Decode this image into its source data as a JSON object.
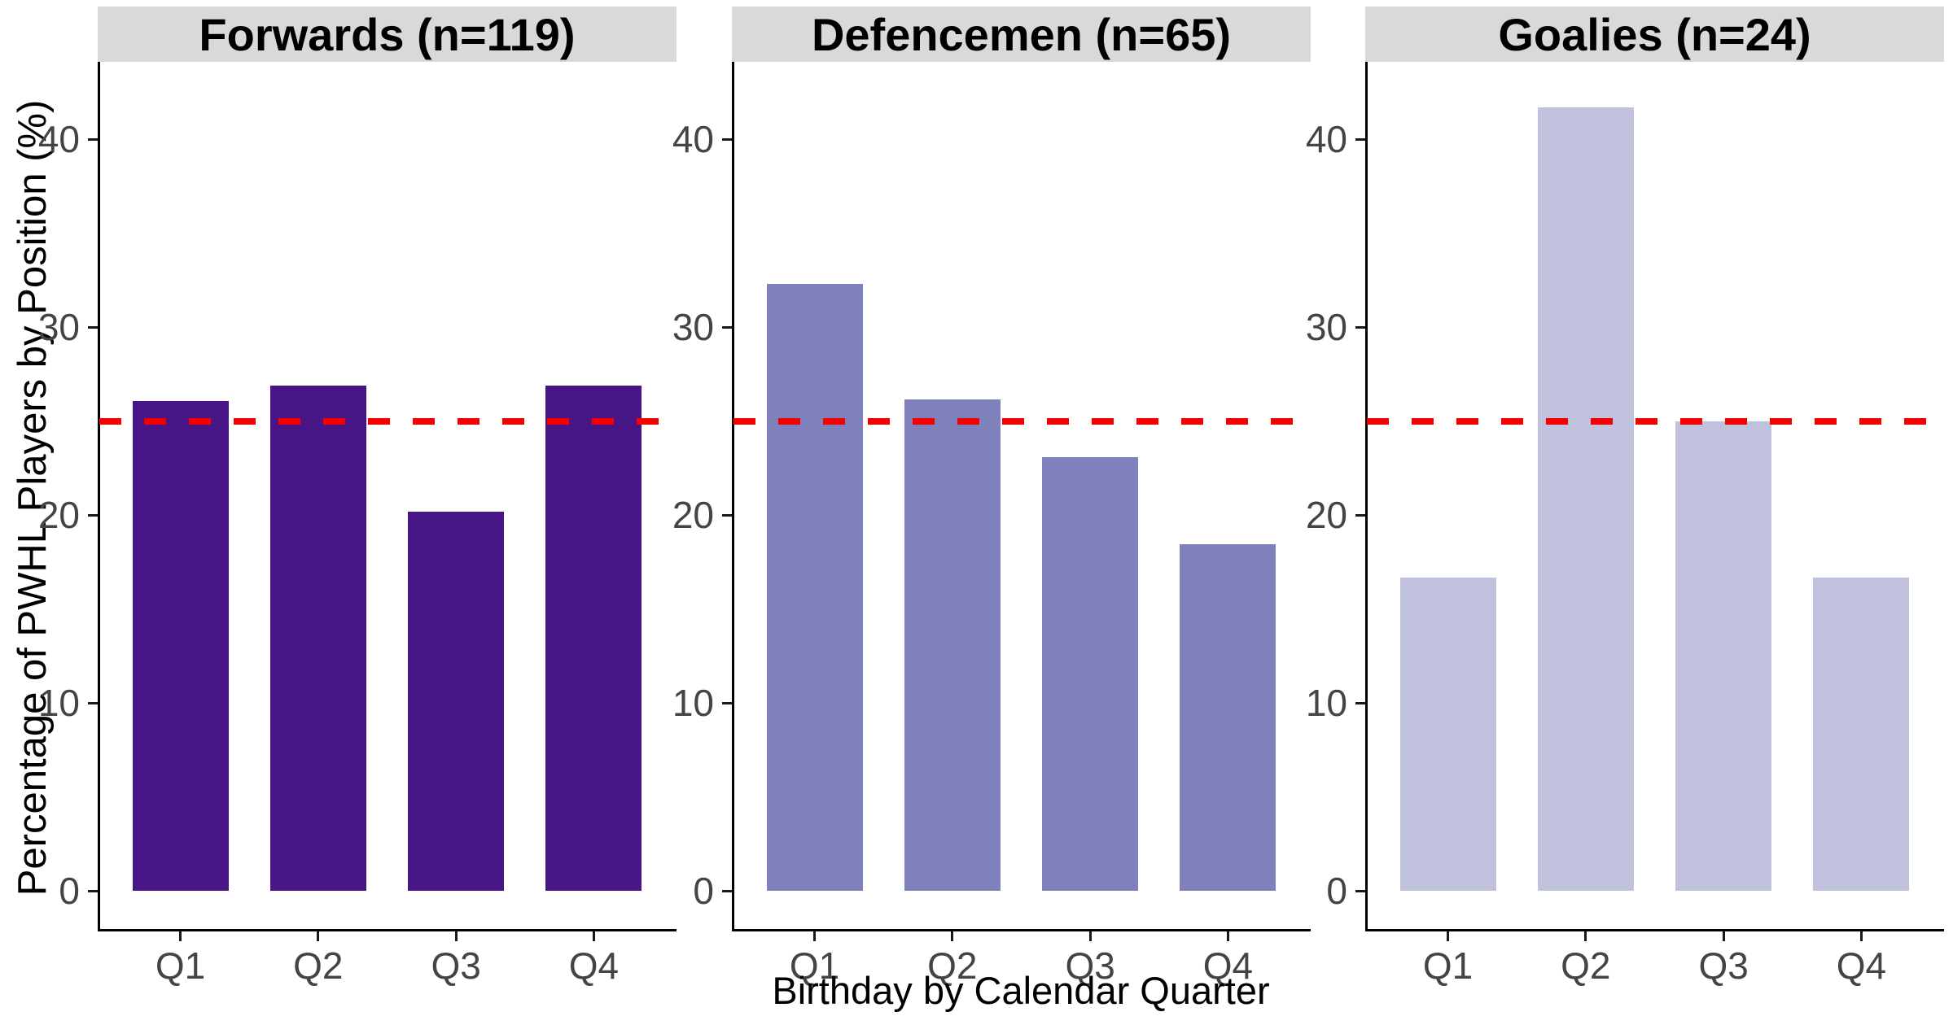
{
  "chart_data": {
    "type": "bar",
    "faceted": true,
    "x_title": "Birthday by Calendar Quarter",
    "y_title": "Percentage of PWHL Players by Position (%)",
    "categories": [
      "Q1",
      "Q2",
      "Q3",
      "Q4"
    ],
    "y_ticks": [
      0,
      10,
      20,
      30,
      40
    ],
    "ylim": [
      0,
      44.3
    ],
    "grid": false,
    "legend": "none",
    "reference_line": {
      "value": 25,
      "style": "dashed",
      "color": "#F40000"
    },
    "panels": [
      {
        "label": "Forwards (n=119)",
        "n": 119,
        "bar_color": "#481586",
        "values": [
          26.05,
          26.89,
          20.17,
          26.89
        ]
      },
      {
        "label": "Defencemen (n=65)",
        "n": 65,
        "bar_color": "#7F81BD",
        "values": [
          32.31,
          26.15,
          23.08,
          18.46
        ]
      },
      {
        "label": "Goalies (n=24)",
        "n": 24,
        "bar_color": "#C0C1DC",
        "values": [
          16.67,
          41.67,
          25,
          16.67
        ]
      }
    ]
  },
  "colors": {
    "background": "#FFFFFF",
    "strip_bg": "#D9D9D9",
    "strip_text": "#000000",
    "axis_line": "#000000",
    "tick_text": "#444444",
    "reference_red": "#F40000"
  }
}
